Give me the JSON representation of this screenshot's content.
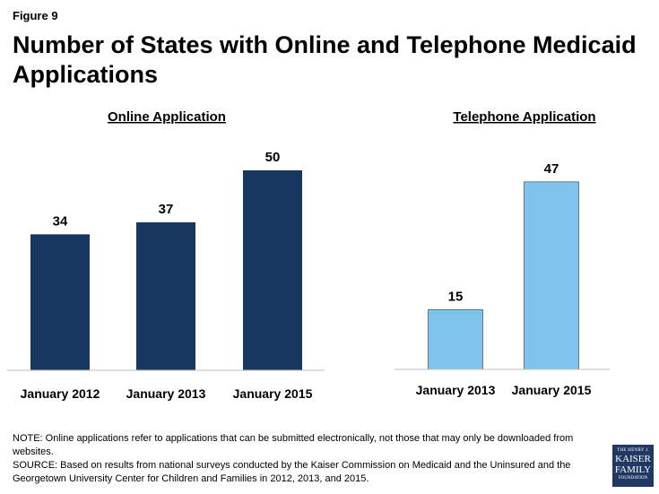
{
  "figure_label": "Figure 9",
  "title": "Number of States with Online and Telephone Medicaid Applications",
  "notes": {
    "note": "NOTE: Online applications  refer to applications that can be submitted electronically, not those that may only be downloaded from websites.",
    "source": "SOURCE: Based on results from national surveys conducted by the Kaiser Commission on Medicaid and the Uninsured and the Georgetown University Center for Children and Families in 2012, 2013, and 2015."
  },
  "logo": {
    "line1": "THE HENRY J.",
    "line2": "KAISER",
    "line3": "FAMILY",
    "line4": "FOUNDATION"
  },
  "colors": {
    "online": "#17375e",
    "telephone": "#7ec4ec",
    "axis": "#bfbfbf"
  },
  "chart_data": [
    {
      "type": "bar",
      "title": "Online Application",
      "categories": [
        "January 2012",
        "January 2013",
        "January 2015"
      ],
      "values": [
        34,
        37,
        50
      ],
      "ylim": [
        0,
        50
      ],
      "grid": false,
      "legend": "none"
    },
    {
      "type": "bar",
      "title": "Telephone Application",
      "categories": [
        "January 2013",
        "January 2015"
      ],
      "values": [
        15,
        47
      ],
      "ylim": [
        0,
        47
      ],
      "grid": false,
      "legend": "none"
    }
  ]
}
